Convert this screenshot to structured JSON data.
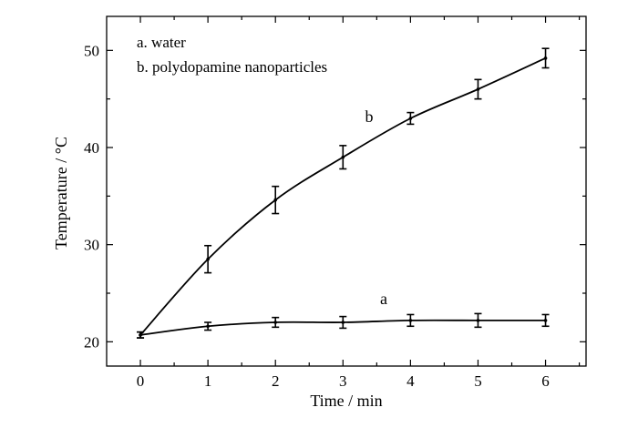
{
  "chart_data": {
    "type": "line",
    "xlabel": "Time / min",
    "ylabel": "Temperature / °C",
    "xlim": [
      -0.5,
      6.6
    ],
    "ylim": [
      17.5,
      53.5
    ],
    "x_ticks": [
      0,
      1,
      2,
      3,
      4,
      5,
      6
    ],
    "y_ticks": [
      20,
      30,
      40,
      50
    ],
    "legend": [
      "a. water",
      "b. polydopamine nanoparticles"
    ],
    "legend_position": "top-left",
    "grid": false,
    "series": [
      {
        "name": "a",
        "x": [
          0,
          1,
          2,
          3,
          4,
          5,
          6
        ],
        "values": [
          20.7,
          21.6,
          22.0,
          22.0,
          22.2,
          22.2,
          22.2
        ],
        "errors": [
          0.3,
          0.4,
          0.5,
          0.6,
          0.6,
          0.7,
          0.6
        ]
      },
      {
        "name": "b",
        "x": [
          0,
          1,
          2,
          3,
          4,
          5,
          6
        ],
        "values": [
          20.7,
          28.5,
          34.6,
          39.0,
          43.0,
          46.0,
          49.2
        ],
        "errors": [
          0.3,
          1.4,
          1.4,
          1.2,
          0.6,
          1.0,
          1.0
        ]
      }
    ]
  }
}
